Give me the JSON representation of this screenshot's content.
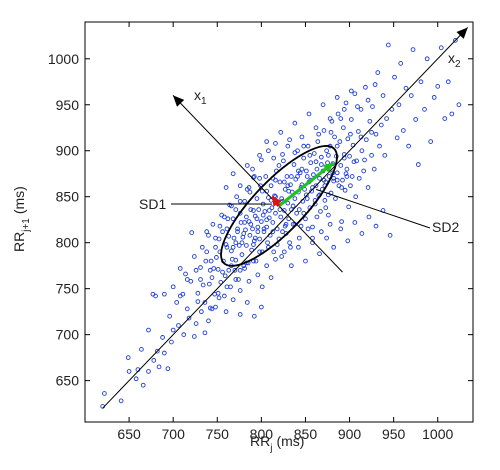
{
  "chart_data": {
    "type": "scatter",
    "title": "",
    "xlabel": "RR",
    "xlabel_sub": "j",
    "xlabel_unit": "(ms)",
    "ylabel": "RR",
    "ylabel_sub": "j+1",
    "ylabel_unit": "(ms)",
    "xlim": [
      600,
      1040
    ],
    "ylim": [
      605,
      1040
    ],
    "xticks": [
      650,
      700,
      750,
      800,
      850,
      900,
      950,
      1000
    ],
    "yticks": [
      650,
      700,
      750,
      800,
      850,
      900,
      950,
      1000
    ],
    "grid": false,
    "marker_color": "#1f3fd6",
    "annotations": {
      "x1_main": "x",
      "x1_sub": "1",
      "x2_main": "x",
      "x2_sub": "2",
      "sd1": "SD1",
      "sd2": "SD2"
    },
    "colors": {
      "sd1_arrow": "#e01010",
      "sd2_arrow": "#22c022",
      "ellipse": "#000000",
      "axes_lines": "#000000"
    },
    "ellipse_center": [
      820,
      840
    ],
    "sd1_value": 17,
    "sd2_value": 65,
    "points": [
      [
        620,
        622
      ],
      [
        622,
        636
      ],
      [
        641,
        628
      ],
      [
        649,
        675
      ],
      [
        660,
        662
      ],
      [
        664,
        684
      ],
      [
        672,
        705
      ],
      [
        677,
        744
      ],
      [
        680,
        742
      ],
      [
        682,
        682
      ],
      [
        688,
        697
      ],
      [
        690,
        744
      ],
      [
        694,
        663
      ],
      [
        696,
        720
      ],
      [
        700,
        705
      ],
      [
        704,
        735
      ],
      [
        708,
        772
      ],
      [
        711,
        744
      ],
      [
        714,
        766
      ],
      [
        716,
        728
      ],
      [
        721,
        811
      ],
      [
        724,
        785
      ],
      [
        724,
        698
      ],
      [
        728,
        736
      ],
      [
        731,
        773
      ],
      [
        734,
        754
      ],
      [
        736,
        702
      ],
      [
        738,
        790
      ],
      [
        740,
        808
      ],
      [
        742,
        729
      ],
      [
        744,
        762
      ],
      [
        745,
        820
      ],
      [
        747,
        744
      ],
      [
        749,
        784
      ],
      [
        751,
        771
      ],
      [
        752,
        804
      ],
      [
        754,
        757
      ],
      [
        755,
        830
      ],
      [
        757,
        780
      ],
      [
        758,
        742
      ],
      [
        760,
        798
      ],
      [
        761,
        815
      ],
      [
        763,
        770
      ],
      [
        764,
        841
      ],
      [
        765,
        752
      ],
      [
        766,
        791
      ],
      [
        768,
        826
      ],
      [
        769,
        805
      ],
      [
        770,
        770
      ],
      [
        771,
        781
      ],
      [
        772,
        850
      ],
      [
        773,
        812
      ],
      [
        774,
        760
      ],
      [
        775,
        797
      ],
      [
        776,
        832
      ],
      [
        777,
        822
      ],
      [
        778,
        787
      ],
      [
        779,
        806
      ],
      [
        780,
        775
      ],
      [
        781,
        845
      ],
      [
        782,
        814
      ],
      [
        783,
        797
      ],
      [
        784,
        858
      ],
      [
        785,
        778
      ],
      [
        786,
        823
      ],
      [
        787,
        808
      ],
      [
        788,
        836
      ],
      [
        789,
        792
      ],
      [
        790,
        815
      ],
      [
        791,
        871
      ],
      [
        792,
        802
      ],
      [
        793,
        829
      ],
      [
        794,
        780
      ],
      [
        795,
        848
      ],
      [
        796,
        817
      ],
      [
        797,
        836
      ],
      [
        798,
        804
      ],
      [
        799,
        862
      ],
      [
        800,
        823
      ],
      [
        801,
        790
      ],
      [
        802,
        842
      ],
      [
        803,
        812
      ],
      [
        804,
        834
      ],
      [
        805,
        872
      ],
      [
        806,
        817
      ],
      [
        807,
        800
      ],
      [
        808,
        849
      ],
      [
        809,
        827
      ],
      [
        810,
        808
      ],
      [
        811,
        862
      ],
      [
        812,
        838
      ],
      [
        813,
        822
      ],
      [
        814,
        790
      ],
      [
        815,
        851
      ],
      [
        816,
        832
      ],
      [
        817,
        878
      ],
      [
        818,
        815
      ],
      [
        819,
        842
      ],
      [
        820,
        804
      ],
      [
        821,
        866
      ],
      [
        822,
        828
      ],
      [
        823,
        848
      ],
      [
        824,
        812
      ],
      [
        825,
        889
      ],
      [
        826,
        835
      ],
      [
        827,
        858
      ],
      [
        828,
        820
      ],
      [
        829,
        872
      ],
      [
        830,
        843
      ],
      [
        831,
        826
      ],
      [
        832,
        800
      ],
      [
        833,
        863
      ],
      [
        834,
        836
      ],
      [
        835,
        855
      ],
      [
        836,
        820
      ],
      [
        837,
        885
      ],
      [
        838,
        848
      ],
      [
        839,
        869
      ],
      [
        840,
        832
      ],
      [
        841,
        900
      ],
      [
        842,
        855
      ],
      [
        843,
        836
      ],
      [
        844,
        876
      ],
      [
        845,
        818
      ],
      [
        846,
        863
      ],
      [
        847,
        845
      ],
      [
        848,
        892
      ],
      [
        849,
        858
      ],
      [
        850,
        826
      ],
      [
        851,
        878
      ],
      [
        852,
        848
      ],
      [
        853,
        905
      ],
      [
        854,
        866
      ],
      [
        855,
        838
      ],
      [
        856,
        887
      ],
      [
        857,
        856
      ],
      [
        858,
        817
      ],
      [
        859,
        874
      ],
      [
        860,
        897
      ],
      [
        861,
        842
      ],
      [
        862,
        862
      ],
      [
        863,
        880
      ],
      [
        864,
        910
      ],
      [
        865,
        851
      ],
      [
        866,
        870
      ],
      [
        867,
        834
      ],
      [
        868,
        893
      ],
      [
        869,
        858
      ],
      [
        870,
        878
      ],
      [
        871,
        922
      ],
      [
        872,
        846
      ],
      [
        873,
        866
      ],
      [
        874,
        900
      ],
      [
        875,
        887
      ],
      [
        876,
        830
      ],
      [
        877,
        872
      ],
      [
        878,
        905
      ],
      [
        879,
        854
      ],
      [
        880,
        932
      ],
      [
        881,
        886
      ],
      [
        882,
        867
      ],
      [
        883,
        915
      ],
      [
        884,
        848
      ],
      [
        885,
        894
      ],
      [
        886,
        876
      ],
      [
        887,
        940
      ],
      [
        888,
        862
      ],
      [
        889,
        910
      ],
      [
        890,
        884
      ],
      [
        891,
        823
      ],
      [
        892,
        868
      ],
      [
        893,
        925
      ],
      [
        894,
        896
      ],
      [
        895,
        857
      ],
      [
        896,
        952
      ],
      [
        897,
        880
      ],
      [
        898,
        913
      ],
      [
        899,
        839
      ],
      [
        900,
        894
      ],
      [
        902,
        934
      ],
      [
        903,
        872
      ],
      [
        904,
        906
      ],
      [
        906,
        962
      ],
      [
        907,
        850
      ],
      [
        908,
        889
      ],
      [
        910,
        921
      ],
      [
        911,
        870
      ],
      [
        913,
        945
      ],
      [
        914,
        900
      ],
      [
        916,
        878
      ],
      [
        918,
        969
      ],
      [
        919,
        912
      ],
      [
        921,
        860
      ],
      [
        923,
        932
      ],
      [
        925,
        895
      ],
      [
        926,
        948
      ],
      [
        928,
        880
      ],
      [
        930,
        918
      ],
      [
        932,
        985
      ],
      [
        934,
        905
      ],
      [
        936,
        928
      ],
      [
        938,
        960
      ],
      [
        940,
        895
      ],
      [
        942,
        935
      ],
      [
        944,
        1015
      ],
      [
        946,
        808
      ],
      [
        948,
        945
      ],
      [
        951,
        980
      ],
      [
        954,
        914
      ],
      [
        956,
        950
      ],
      [
        958,
        995
      ],
      [
        961,
        922
      ],
      [
        964,
        968
      ],
      [
        967,
        905
      ],
      [
        970,
        960
      ],
      [
        972,
        1010
      ],
      [
        975,
        934
      ],
      [
        978,
        885
      ],
      [
        981,
        975
      ],
      [
        985,
        945
      ],
      [
        988,
        1000
      ],
      [
        992,
        910
      ],
      [
        996,
        958
      ],
      [
        1000,
        970
      ],
      [
        1004,
        1012
      ],
      [
        1008,
        935
      ],
      [
        1012,
        975
      ],
      [
        1016,
        940
      ],
      [
        1020,
        1020
      ],
      [
        1024,
        950
      ],
      [
        742,
        770
      ],
      [
        748,
        795
      ],
      [
        753,
        818
      ],
      [
        759,
        764
      ],
      [
        762,
        826
      ],
      [
        767,
        782
      ],
      [
        771,
        836
      ],
      [
        776,
        770
      ],
      [
        780,
        810
      ],
      [
        783,
        828
      ],
      [
        787,
        855
      ],
      [
        791,
        798
      ],
      [
        795,
        826
      ],
      [
        798,
        870
      ],
      [
        802,
        830
      ],
      [
        806,
        856
      ],
      [
        809,
        835
      ],
      [
        813,
        870
      ],
      [
        816,
        850
      ],
      [
        820,
        884
      ],
      [
        824,
        845
      ],
      [
        827,
        818
      ],
      [
        830,
        862
      ],
      [
        834,
        872
      ],
      [
        838,
        898
      ],
      [
        842,
        878
      ],
      [
        845,
        860
      ],
      [
        848,
        905
      ],
      [
        852,
        872
      ],
      [
        855,
        895
      ],
      [
        858,
        860
      ],
      [
        862,
        888
      ],
      [
        865,
        918
      ],
      [
        868,
        885
      ],
      [
        872,
        862
      ],
      [
        876,
        895
      ],
      [
        879,
        920
      ],
      [
        882,
        870
      ],
      [
        886,
        905
      ],
      [
        890,
        935
      ],
      [
        894,
        892
      ],
      [
        897,
        872
      ],
      [
        901,
        918
      ],
      [
        905,
        888
      ],
      [
        909,
        948
      ],
      [
        913,
        915
      ],
      [
        917,
        890
      ],
      [
        921,
        955
      ],
      [
        925,
        920
      ],
      [
        929,
        972
      ],
      [
        756,
        812
      ],
      [
        761,
        795
      ],
      [
        766,
        840
      ],
      [
        771,
        800
      ],
      [
        776,
        845
      ],
      [
        781,
        822
      ],
      [
        786,
        860
      ],
      [
        791,
        835
      ],
      [
        796,
        812
      ],
      [
        801,
        856
      ],
      [
        806,
        825
      ],
      [
        811,
        846
      ],
      [
        816,
        868
      ],
      [
        821,
        836
      ],
      [
        826,
        866
      ],
      [
        831,
        856
      ],
      [
        836,
        840
      ],
      [
        841,
        872
      ],
      [
        846,
        880
      ],
      [
        851,
        852
      ],
      [
        856,
        868
      ],
      [
        861,
        846
      ],
      [
        866,
        852
      ],
      [
        871,
        868
      ],
      [
        876,
        852
      ],
      [
        881,
        876
      ],
      [
        886,
        868
      ],
      [
        891,
        860
      ],
      [
        896,
        875
      ],
      [
        901,
        862
      ],
      [
        733,
        795
      ],
      [
        738,
        812
      ],
      [
        743,
        780
      ],
      [
        748,
        805
      ],
      [
        753,
        790
      ],
      [
        758,
        828
      ],
      [
        763,
        807
      ],
      [
        768,
        795
      ],
      [
        773,
        815
      ],
      [
        778,
        800
      ],
      [
        783,
        778
      ],
      [
        788,
        820
      ],
      [
        793,
        805
      ],
      [
        798,
        790
      ],
      [
        803,
        815
      ],
      [
        808,
        795
      ],
      [
        813,
        812
      ],
      [
        818,
        798
      ],
      [
        823,
        785
      ],
      [
        828,
        810
      ],
      [
        833,
        795
      ],
      [
        838,
        820
      ],
      [
        843,
        805
      ],
      [
        848,
        832
      ],
      [
        853,
        815
      ],
      [
        858,
        805
      ],
      [
        863,
        828
      ],
      [
        868,
        812
      ],
      [
        873,
        838
      ],
      [
        878,
        820
      ],
      [
        720,
        758
      ],
      [
        726,
        770
      ],
      [
        731,
        760
      ],
      [
        737,
        780
      ],
      [
        741,
        755
      ],
      [
        746,
        772
      ],
      [
        751,
        745
      ],
      [
        756,
        768
      ],
      [
        761,
        752
      ],
      [
        766,
        775
      ],
      [
        771,
        760
      ],
      [
        776,
        748
      ],
      [
        781,
        772
      ],
      [
        786,
        758
      ],
      [
        791,
        780
      ],
      [
        796,
        765
      ],
      [
        801,
        752
      ],
      [
        806,
        775
      ],
      [
        811,
        762
      ],
      [
        816,
        782
      ],
      [
        826,
        790
      ],
      [
        834,
        775
      ],
      [
        842,
        795
      ],
      [
        850,
        780
      ],
      [
        858,
        800
      ],
      [
        866,
        788
      ],
      [
        874,
        805
      ],
      [
        882,
        795
      ],
      [
        890,
        815
      ],
      [
        898,
        802
      ],
      [
        906,
        822
      ],
      [
        914,
        810
      ],
      [
        922,
        828
      ],
      [
        930,
        818
      ],
      [
        938,
        835
      ],
      [
        790,
        880
      ],
      [
        798,
        895
      ],
      [
        806,
        910
      ],
      [
        814,
        892
      ],
      [
        822,
        920
      ],
      [
        830,
        905
      ],
      [
        838,
        930
      ],
      [
        846,
        915
      ],
      [
        854,
        940
      ],
      [
        862,
        925
      ],
      [
        870,
        950
      ],
      [
        878,
        935
      ],
      [
        886,
        958
      ],
      [
        894,
        945
      ],
      [
        902,
        965
      ],
      [
        700,
        752
      ],
      [
        708,
        742
      ],
      [
        716,
        760
      ],
      [
        728,
        745
      ],
      [
        736,
        735
      ],
      [
        744,
        728
      ],
      [
        752,
        740
      ],
      [
        760,
        725
      ],
      [
        768,
        738
      ],
      [
        776,
        722
      ],
      [
        784,
        735
      ],
      [
        792,
        720
      ],
      [
        800,
        730
      ],
      [
        690,
        680
      ],
      [
        698,
        692
      ],
      [
        706,
        710
      ],
      [
        712,
        700
      ],
      [
        718,
        718
      ],
      [
        726,
        712
      ],
      [
        732,
        725
      ],
      [
        740,
        715
      ],
      [
        748,
        730
      ],
      [
        650,
        660
      ],
      [
        658,
        652
      ],
      [
        666,
        645
      ],
      [
        672,
        660
      ],
      [
        678,
        672
      ],
      [
        684,
        665
      ],
      [
        760,
        860
      ],
      [
        768,
        875
      ],
      [
        776,
        862
      ],
      [
        784,
        884
      ],
      [
        792,
        872
      ],
      [
        800,
        890
      ],
      [
        808,
        900
      ],
      [
        816,
        908
      ],
      [
        824,
        896
      ],
      [
        832,
        912
      ]
    ]
  }
}
